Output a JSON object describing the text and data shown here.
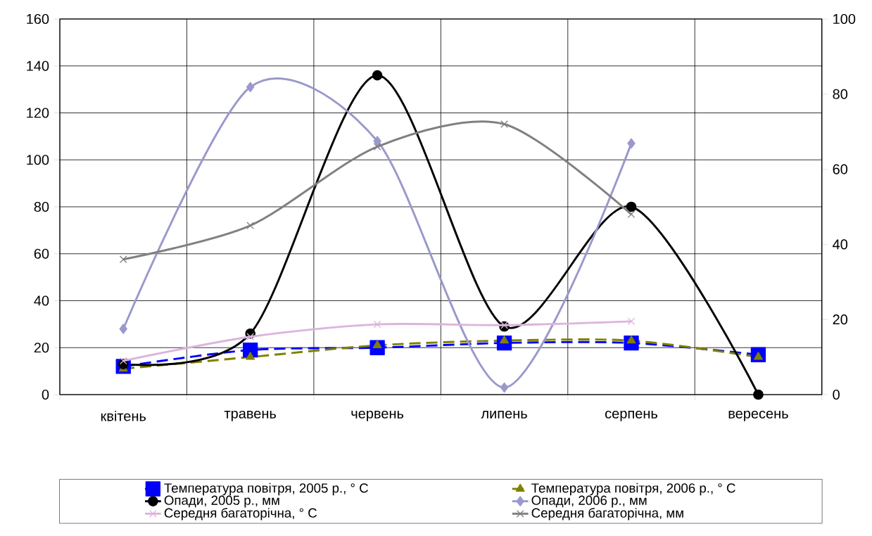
{
  "chart_data": {
    "type": "line",
    "categories": [
      "квітень",
      "травень",
      "червень",
      "липень",
      "серпень",
      "вересень"
    ],
    "ylim": [
      0,
      160
    ],
    "yticks": [
      0,
      20,
      40,
      60,
      80,
      100,
      120,
      140,
      160
    ],
    "y2lim": [
      0,
      100
    ],
    "y2ticks": [
      0,
      20,
      40,
      60,
      80,
      100
    ],
    "grid": true,
    "legend": "bottom",
    "series": [
      {
        "name": "Температура повітря, 2005 р., ° C",
        "color": "#0000ff",
        "marker": "square",
        "line_style": "dashed",
        "values": [
          12,
          19,
          20,
          22,
          22,
          17
        ]
      },
      {
        "name": "Температура повітря, 2006 р., ° C",
        "color": "#808000",
        "marker": "triangle",
        "line_style": "dashed",
        "values": [
          11,
          16,
          21,
          23,
          23,
          16
        ]
      },
      {
        "name": "Опади, 2005 р., мм",
        "color": "#000000",
        "marker": "circle",
        "line_style": "solid",
        "values": [
          13,
          26,
          136,
          29,
          80,
          0
        ]
      },
      {
        "name": "Опади, 2006 р., мм",
        "color": "#9999cc",
        "marker": "diamond",
        "line_style": "solid",
        "values": [
          28,
          131,
          108,
          3,
          107,
          null
        ]
      },
      {
        "name": "Середня багаторічна, ° C",
        "color": "#dcb4dc",
        "marker": "cross",
        "line_style": "solid",
        "axis": "y2",
        "values": [
          9,
          15.4,
          18.7,
          18.5,
          19.5,
          null
        ]
      },
      {
        "name": "Середня багаторічна, мм",
        "color": "#808080",
        "marker": "cross",
        "line_style": "solid",
        "axis": "y2",
        "values": [
          36,
          45,
          66,
          72,
          48,
          null
        ]
      }
    ]
  }
}
